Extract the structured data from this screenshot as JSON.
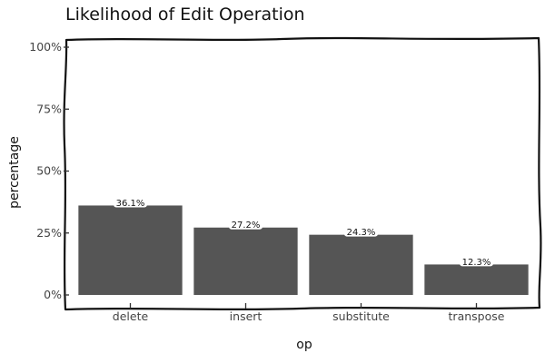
{
  "chart_data": {
    "type": "bar",
    "title": "Likelihood of Edit Operation",
    "xlabel": "op",
    "ylabel": "percentage",
    "categories": [
      "delete",
      "insert",
      "substitute",
      "transpose"
    ],
    "values": [
      36.1,
      27.2,
      24.3,
      12.3
    ],
    "value_labels": [
      "36.1%",
      "27.2%",
      "24.3%",
      "12.3%"
    ],
    "ylim": [
      0,
      100
    ],
    "yticks": [
      0,
      25,
      50,
      75,
      100
    ],
    "ytick_labels": [
      "0%",
      "25%",
      "50%",
      "75%",
      "100%"
    ],
    "grid": false,
    "legend": "none",
    "colors": {
      "bar": "#555555",
      "frame": "#111111"
    }
  }
}
